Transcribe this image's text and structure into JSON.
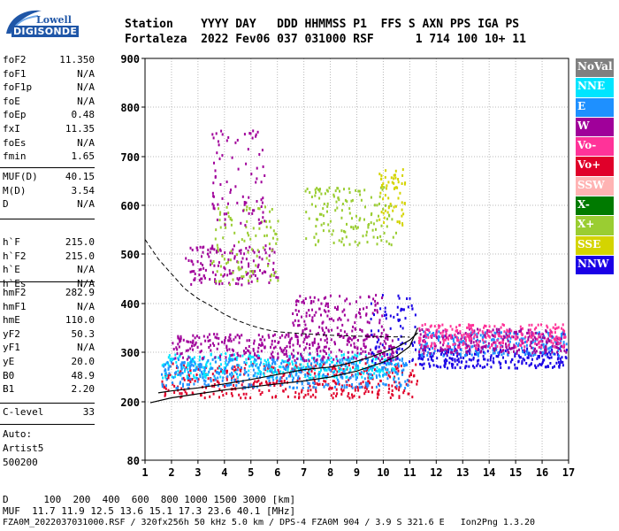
{
  "logo": {
    "top": "Lowell",
    "bottom": "DIGISONDE"
  },
  "header": {
    "row1": "Station    YYYY DAY   DDD HHMMSS P1  FFS S AXN PPS IGA PS",
    "row2": "Fortaleza  2022 Fev06 037 031000 RSF      1 714 100 10+ 11"
  },
  "params": {
    "group1": [
      {
        "k": "foF2",
        "v": "11.350"
      },
      {
        "k": "foF1",
        "v": "N/A"
      },
      {
        "k": "foF1p",
        "v": "N/A"
      },
      {
        "k": "foE",
        "v": "N/A"
      },
      {
        "k": "foEp",
        "v": "0.48"
      },
      {
        "k": "fxI",
        "v": "11.35"
      },
      {
        "k": "foEs",
        "v": "N/A"
      },
      {
        "k": "fmin",
        "v": "1.65"
      }
    ],
    "group2": [
      {
        "k": "MUF(D)",
        "v": "40.15"
      },
      {
        "k": "M(D)",
        "v": "3.54"
      },
      {
        "k": "D",
        "v": "N/A"
      }
    ],
    "group3": [
      {
        "k": "h`F",
        "v": "215.0"
      },
      {
        "k": "h`F2",
        "v": "215.0"
      },
      {
        "k": "h`E",
        "v": "N/A"
      },
      {
        "k": "h`Es",
        "v": "N/A"
      }
    ],
    "group4": [
      {
        "k": "hmF2",
        "v": "282.9"
      },
      {
        "k": "hmF1",
        "v": "N/A"
      },
      {
        "k": "hmE",
        "v": "110.0"
      },
      {
        "k": "yF2",
        "v": "50.3"
      },
      {
        "k": "yF1",
        "v": "N/A"
      },
      {
        "k": "yE",
        "v": "20.0"
      },
      {
        "k": "B0",
        "v": "48.9"
      },
      {
        "k": "B1",
        "v": "2.20"
      }
    ],
    "group5": [
      {
        "k": "C-level",
        "v": "33"
      }
    ],
    "auto": [
      "Auto:",
      "Artist5",
      "500200"
    ]
  },
  "legend": [
    {
      "label": "NoVal",
      "bg": "#808080",
      "fg": "#ffffff"
    },
    {
      "label": "NNE",
      "bg": "#00e5ff",
      "fg": "#ffffff"
    },
    {
      "label": "E",
      "bg": "#1e90ff",
      "fg": "#ffffff"
    },
    {
      "label": "W",
      "bg": "#a0009a",
      "fg": "#ffffff"
    },
    {
      "label": "Vo-",
      "bg": "#ff3399",
      "fg": "#ffffff"
    },
    {
      "label": "Vo+",
      "bg": "#e0002a",
      "fg": "#ffffff"
    },
    {
      "label": "SSW",
      "bg": "#ffb3b3",
      "fg": "#ffffff"
    },
    {
      "label": "X-",
      "bg": "#007a00",
      "fg": "#ffffff"
    },
    {
      "label": "X+",
      "bg": "#9acd32",
      "fg": "#ffffff"
    },
    {
      "label": "SSE",
      "bg": "#d4d400",
      "fg": "#ffffff"
    },
    {
      "label": "NNW",
      "bg": "#1a00e6",
      "fg": "#ffffff"
    }
  ],
  "chart_data": {
    "type": "scatter",
    "xlim": [
      1,
      17
    ],
    "ylim": [
      80,
      900
    ],
    "xticks": [
      "1",
      "2",
      "3",
      "4",
      "5",
      "6",
      "7",
      "8",
      "9",
      "10",
      "11",
      "12",
      "13",
      "14",
      "15",
      "16",
      "17"
    ],
    "yticks": [
      "80",
      "200",
      "300",
      "400",
      "500",
      "600",
      "700",
      "800",
      "900"
    ],
    "ytick_values": [
      80,
      200,
      300,
      400,
      500,
      600,
      700,
      800,
      900
    ],
    "grid": true,
    "profile_curve": {
      "x": [
        1.2,
        2,
        3,
        4,
        5,
        6,
        7,
        8,
        9,
        10,
        10.5,
        11,
        11.3
      ],
      "y": [
        198,
        208,
        216,
        224,
        230,
        236,
        242,
        250,
        262,
        280,
        292,
        312,
        350
      ]
    },
    "dashed_curve": {
      "x": [
        1.0,
        1.5,
        2,
        2.5,
        3,
        3.5,
        4,
        4.5,
        5,
        5.5,
        6,
        7,
        8,
        9,
        10,
        11
      ],
      "y": [
        530,
        490,
        460,
        430,
        410,
        395,
        378,
        365,
        355,
        347,
        342,
        338,
        335,
        333,
        332,
        331
      ]
    },
    "trace_curve": {
      "x": [
        1.5,
        2,
        3,
        4,
        5,
        6,
        7,
        8,
        8.5,
        9,
        9.5,
        10,
        10.5,
        11,
        11.3
      ],
      "y": [
        218,
        222,
        228,
        236,
        245,
        255,
        265,
        270,
        275,
        282,
        290,
        300,
        310,
        325,
        340
      ]
    },
    "echo_regions": [
      {
        "x": [
          1.6,
          11.3
        ],
        "y": [
          210,
          280
        ],
        "color": "#e0002a"
      },
      {
        "x": [
          1.6,
          10.5
        ],
        "y": [
          250,
          300
        ],
        "color": "#00e5ff"
      },
      {
        "x": [
          1.6,
          11.0
        ],
        "y": [
          230,
          290
        ],
        "color": "#1e90ff"
      },
      {
        "x": [
          2.0,
          10.5
        ],
        "y": [
          285,
          340
        ],
        "color": "#a0009a"
      },
      {
        "x": [
          2.5,
          6.0
        ],
        "y": [
          440,
          520
        ],
        "color": "#a0009a"
      },
      {
        "x": [
          3.5,
          6.0
        ],
        "y": [
          440,
          600
        ],
        "color": "#9acd32"
      },
      {
        "x": [
          6.5,
          10.0
        ],
        "y": [
          330,
          420
        ],
        "color": "#a0009a"
      },
      {
        "x": [
          9.5,
          11.2
        ],
        "y": [
          280,
          420
        ],
        "color": "#1a00e6"
      },
      {
        "x": [
          11.3,
          16.9
        ],
        "y": [
          270,
          310
        ],
        "color": "#1a00e6"
      },
      {
        "x": [
          11.3,
          16.9
        ],
        "y": [
          295,
          345
        ],
        "color": "#1e90ff"
      },
      {
        "x": [
          11.3,
          16.9
        ],
        "y": [
          300,
          350
        ],
        "color": "#a0009a"
      },
      {
        "x": [
          11.3,
          16.9
        ],
        "y": [
          310,
          360
        ],
        "color": "#ff3399"
      },
      {
        "x": [
          3.5,
          5.5
        ],
        "y": [
          560,
          760
        ],
        "color": "#a0009a"
      },
      {
        "x": [
          7.0,
          10.5
        ],
        "y": [
          520,
          640
        ],
        "color": "#9acd32"
      },
      {
        "x": [
          9.8,
          10.8
        ],
        "y": [
          560,
          680
        ],
        "color": "#d4d400"
      }
    ]
  },
  "footer": {
    "line1": "D      100  200  400  600  800 1000 1500 3000 [km]",
    "line2": "MUF  11.7 11.9 12.5 13.6 15.1 17.3 23.6 40.1 [MHz]",
    "line3": "FZA0M_2022037031000.RSF / 320fx256h 50 kHz 5.0 km / DPS-4 FZA0M 904 / 3.9 S 321.6 E   Ion2Png 1.3.20"
  }
}
